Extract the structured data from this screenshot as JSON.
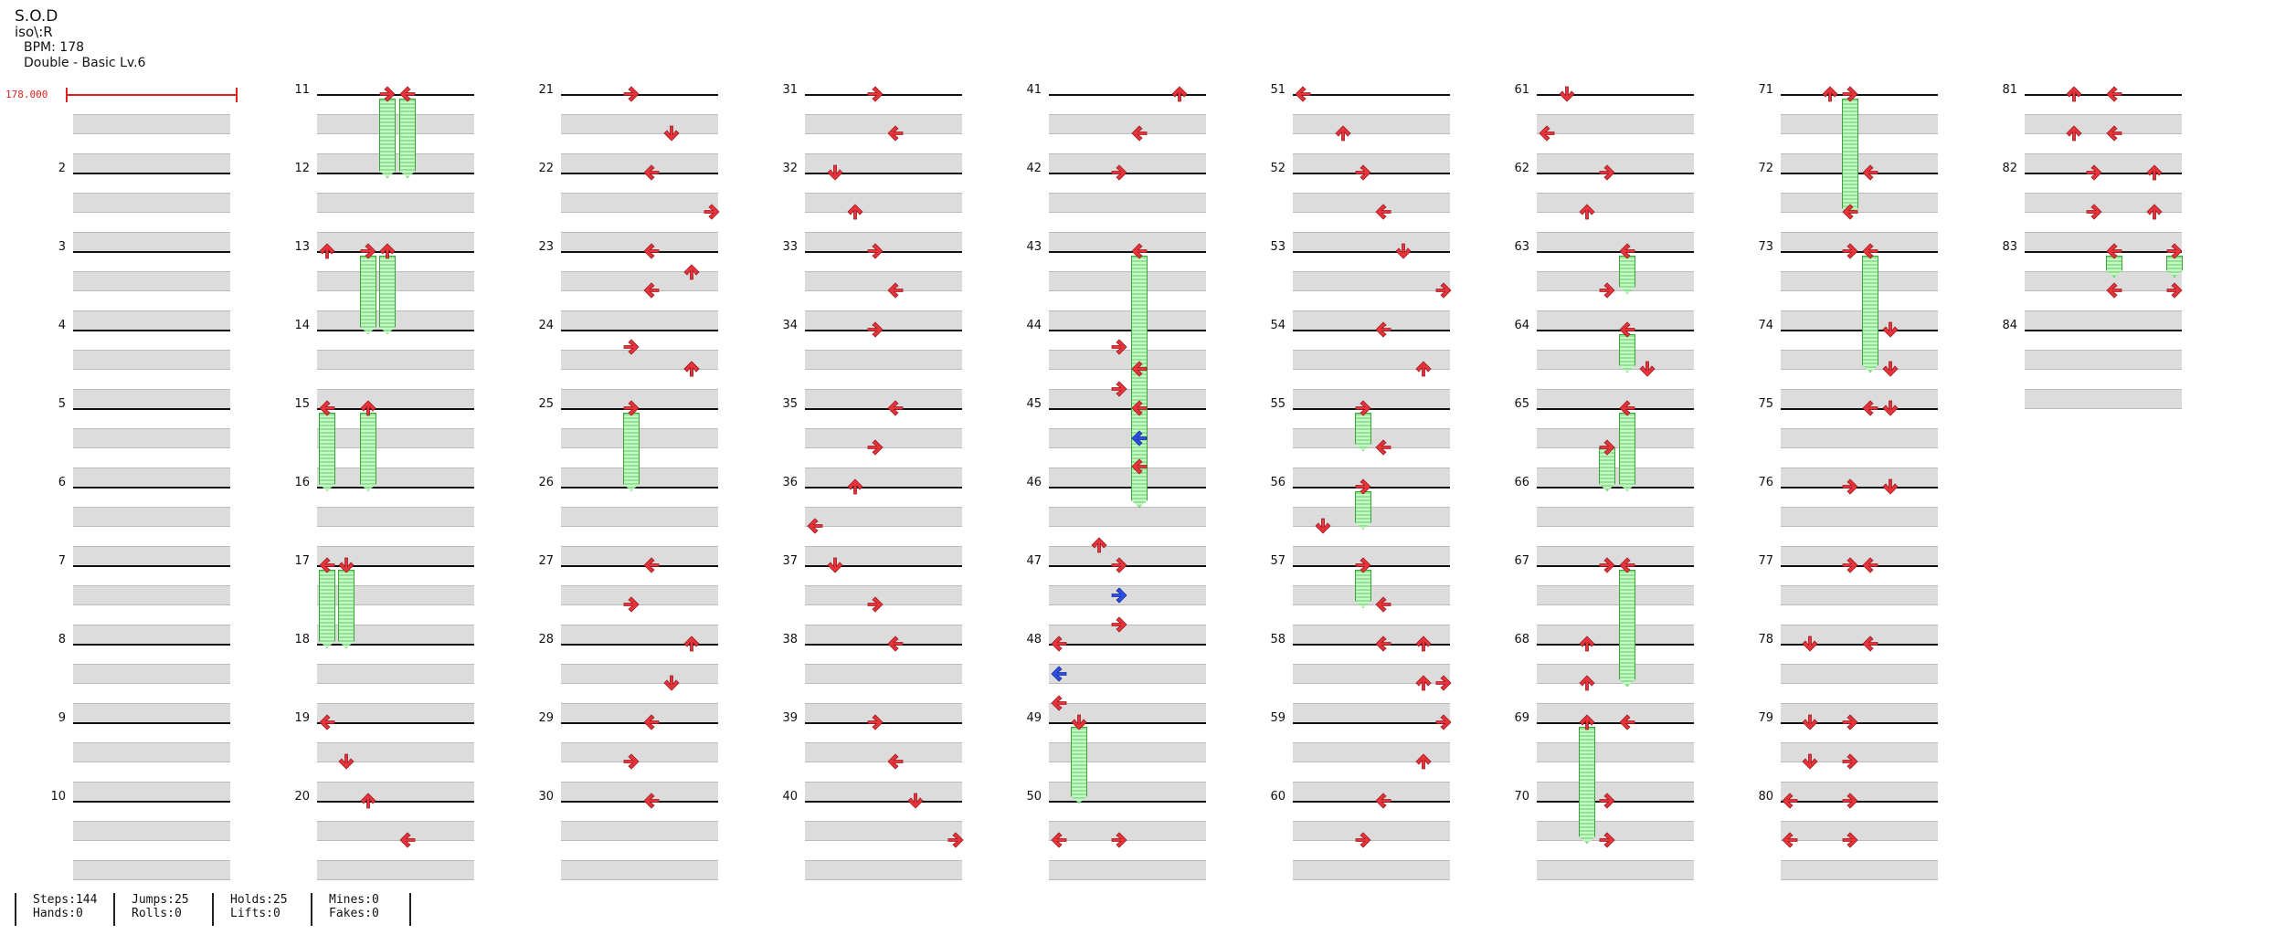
{
  "song": {
    "title": "S.O.D",
    "artist": "iso\\:R",
    "bpm_text": "BPM: 178",
    "chart_text": "Double - Basic  Lv.6",
    "bpm_marker": "178.000"
  },
  "colors": {
    "arrow": "#e8333a",
    "arrow_alt": "#2a4ee6",
    "hold": "#8fe58f",
    "band": "#dcdcdc",
    "bpm": "#e02020"
  },
  "measures": [
    "2",
    "3",
    "4",
    "5",
    "6",
    "7",
    "8",
    "9",
    "10",
    "11",
    "12",
    "13",
    "14",
    "15",
    "16",
    "17",
    "18",
    "19",
    "20",
    "21",
    "22",
    "23",
    "24",
    "25",
    "26",
    "27",
    "28",
    "29",
    "30",
    "31",
    "32",
    "33",
    "34",
    "35",
    "36",
    "37",
    "38",
    "39",
    "40",
    "41",
    "42",
    "43",
    "44",
    "45",
    "46",
    "47",
    "48",
    "49",
    "50",
    "51",
    "52",
    "53",
    "54",
    "55",
    "56",
    "57",
    "58",
    "59",
    "60",
    "61",
    "62",
    "63",
    "64",
    "65",
    "66",
    "67",
    "68",
    "69",
    "70",
    "71",
    "72",
    "73",
    "74",
    "75",
    "76",
    "77",
    "78",
    "79",
    "80",
    "81",
    "82",
    "83",
    "84"
  ],
  "stats": {
    "steps": "Steps:144",
    "hands": "Hands:0",
    "jumps": "Jumps:25",
    "rolls": "Rolls:0",
    "holds": "Holds:25",
    "lifts": "Lifts:0",
    "mines": "Mines:0",
    "fakes": "Fakes:0"
  }
}
